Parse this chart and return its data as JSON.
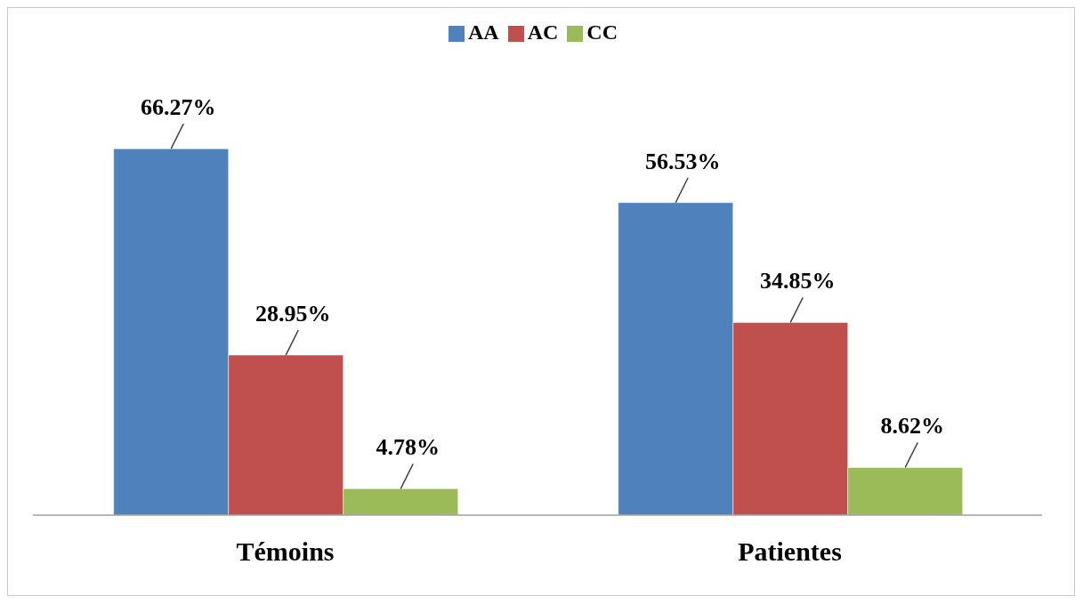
{
  "chart_data": {
    "type": "bar",
    "categories": [
      "Témoins",
      "Patientes"
    ],
    "series": [
      {
        "name": "AA",
        "color": "#4f81bd",
        "values": [
          66.27,
          56.53
        ],
        "value_labels": [
          "66.27%",
          "56.53%"
        ]
      },
      {
        "name": "AC",
        "color": "#c0504d",
        "values": [
          28.95,
          34.85
        ],
        "value_labels": [
          "28.95%",
          "34.85%"
        ]
      },
      {
        "name": "CC",
        "color": "#9bbb59",
        "values": [
          4.78,
          8.62
        ],
        "value_labels": [
          "4.78%",
          "8.62%"
        ]
      }
    ],
    "legend": "top",
    "grid": false
  }
}
